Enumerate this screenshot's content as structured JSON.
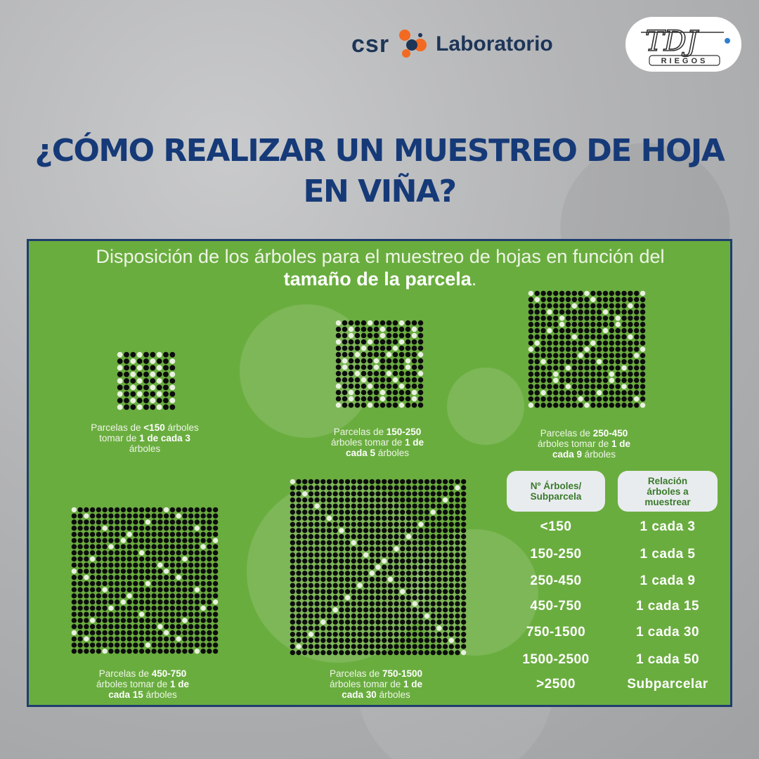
{
  "header": {
    "logo_csr": "csr",
    "logo_lab": "Laboratorio",
    "logo_tdj": "TDJ",
    "logo_riegos": "RIEGOS"
  },
  "title": {
    "line1": "¿CÓMO REALIZAR UN MUESTREO DE HOJA",
    "line2": "EN VIÑA?"
  },
  "panel": {
    "subtitle_normal": "Disposición de los árboles para el muestreo de hojas en función del",
    "subtitle_bold": "tamaño de la parcela",
    "subtitle_end": ".",
    "grids": [
      {
        "cols": 9,
        "rows": 9,
        "every": 3
      },
      {
        "cols": 14,
        "rows": 14,
        "every": 5
      },
      {
        "cols": 19,
        "rows": 19,
        "every": 9
      },
      {
        "cols": 24,
        "rows": 24,
        "every": 15
      },
      {
        "cols": 29,
        "rows": 29,
        "every": 30
      }
    ],
    "captions": [
      {
        "p1": "Parcelas de ",
        "b1": "<150",
        "p2": " árboles",
        "p3": "tomar de ",
        "b2": "1 de cada 3",
        "p4": "árboles"
      },
      {
        "p1": "Parcelas de ",
        "b1": "150-250",
        "p2": "",
        "p3": "árboles tomar de ",
        "b2": "1 de",
        "b3": "cada 5",
        "p4": " árboles"
      },
      {
        "p1": "Parcelas de ",
        "b1": "250-450",
        "p2": "",
        "p3": "árboles tomar de ",
        "b2": "1 de",
        "b3": "cada 9",
        "p4": " árboles"
      },
      {
        "p1": "Parcelas de ",
        "b1": "450-750",
        "p2": "",
        "p3": "árboles tomar de ",
        "b2": "1 de",
        "b3": "cada 15",
        "p4": " árboles"
      },
      {
        "p1": "Parcelas de ",
        "b1": "750-1500",
        "p2": "",
        "p3": "árboles tomar de ",
        "b2": "1 de",
        "b3": "cada 30",
        "p4": " árboles"
      }
    ],
    "table": {
      "header_left": [
        "Nº Árboles/",
        "Subparcela"
      ],
      "header_right": [
        "Relación",
        "árboles a",
        "muestrear"
      ],
      "rows": [
        {
          "size": "<150",
          "ratio": "1 cada 3"
        },
        {
          "size": "150-250",
          "ratio": "1 cada 5"
        },
        {
          "size": "250-450",
          "ratio": "1 cada 9"
        },
        {
          "size": "450-750",
          "ratio": "1 cada 15"
        },
        {
          "size": "750-1500",
          "ratio": "1 cada 30"
        },
        {
          "size": "1500-2500",
          "ratio": "1 cada 50"
        },
        {
          "size": ">2500",
          "ratio": "Subparcelar"
        }
      ]
    }
  },
  "colors": {
    "title": "#163a78",
    "panel": "#6aad3f",
    "border": "#1f3d6e",
    "tree": "#0d0d0d",
    "sample": "#e8f0e0"
  },
  "icons": [
    "csr-molecule-icon",
    "tdj-riegos-logo"
  ]
}
